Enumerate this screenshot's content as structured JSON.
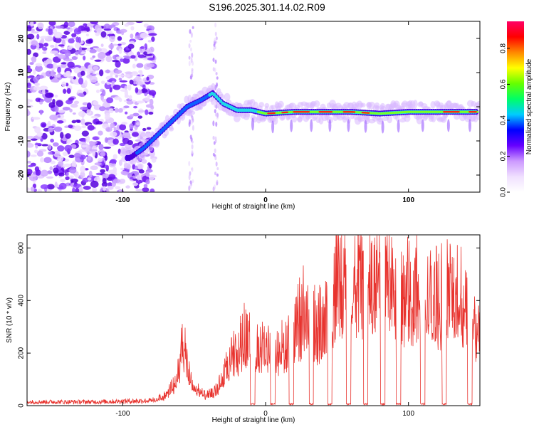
{
  "figure": {
    "title": "S196.2025.301.14.02.R09"
  },
  "colors": {
    "snr_line": "#e8332e",
    "axis": "#000000",
    "colorbar_stops": [
      "#ffffff",
      "#f0e0ff",
      "#cc99ff",
      "#6600ff",
      "#0000ff",
      "#00ccff",
      "#00ff66",
      "#66ff00",
      "#ffff00",
      "#ff8800",
      "#ff0000",
      "#ff0066"
    ]
  },
  "chart_data": [
    {
      "type": "heatmap",
      "name": "spectrogram",
      "xlabel": "Height of straight line (km)",
      "ylabel": "Frequency (Hz)",
      "xlim": [
        -167,
        150
      ],
      "ylim": [
        -25,
        25
      ],
      "x_ticks": [
        -100,
        0,
        100
      ],
      "x_tick_labels": [
        "-100",
        "0",
        "100"
      ],
      "y_ticks": [
        -20,
        -10,
        0,
        10,
        20
      ],
      "y_tick_labels": [
        "-20",
        "-10",
        "0",
        "10",
        "20"
      ],
      "ridge": {
        "x": [
          -95,
          -85,
          -75,
          -65,
          -55,
          -45,
          -37,
          -30,
          -20,
          -10,
          0,
          20,
          40,
          60,
          80,
          100,
          120,
          148
        ],
        "y": [
          -15,
          -12,
          -8,
          -4,
          0,
          2,
          4,
          1,
          -1,
          -1,
          -2,
          -1.5,
          -1.5,
          -1.5,
          -2,
          -1.5,
          -1.5,
          -1.5
        ]
      },
      "colorbar": {
        "label": "Normalized spectral amplitude",
        "range": [
          0,
          0.95
        ],
        "ticks": [
          0.0,
          0.2,
          0.4,
          0.6,
          0.8
        ],
        "tick_labels": [
          "0.0",
          "0.2",
          "0.4",
          "0.6",
          "0.8"
        ]
      }
    },
    {
      "type": "line",
      "name": "snr",
      "xlabel": "Height of straight line (km)",
      "ylabel": "SNR (10 * v/v)",
      "xlim": [
        -167,
        150
      ],
      "ylim": [
        0,
        650
      ],
      "x_ticks": [
        -100,
        0,
        100
      ],
      "x_tick_labels": [
        "-100",
        "0",
        "100"
      ],
      "y_ticks": [
        0,
        200,
        400,
        600
      ],
      "y_tick_labels": [
        "0",
        "200",
        "400",
        "600"
      ],
      "envelope": {
        "x": [
          -167,
          -120,
          -80,
          -70,
          -62,
          -58,
          -54,
          -50,
          -42,
          -35,
          -25,
          -20,
          -15,
          -10,
          0,
          10,
          20,
          27,
          30,
          40,
          45,
          50,
          60,
          70,
          80,
          90,
          100,
          110,
          120,
          130,
          140,
          150
        ],
        "y": [
          15,
          15,
          20,
          40,
          120,
          250,
          150,
          80,
          40,
          60,
          180,
          230,
          280,
          260,
          230,
          240,
          270,
          420,
          330,
          330,
          400,
          520,
          510,
          500,
          560,
          500,
          480,
          470,
          440,
          470,
          460,
          300
        ]
      },
      "dropouts": [
        -9,
        5,
        18,
        32,
        45,
        58,
        70,
        82,
        93,
        110,
        125,
        143
      ]
    }
  ]
}
